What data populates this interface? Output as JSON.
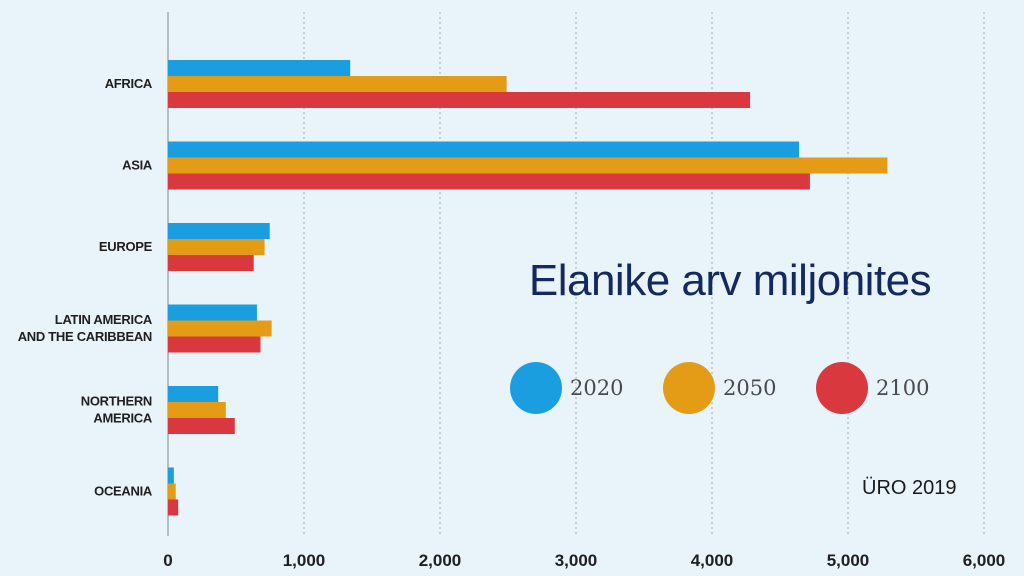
{
  "chart_data": {
    "type": "bar",
    "orientation": "horizontal",
    "title": "Elanike arv miljonites",
    "categories": [
      [
        "AFRICA"
      ],
      [
        "ASIA"
      ],
      [
        "EUROPE"
      ],
      [
        "LATIN AMERICA",
        "AND THE CARIBBEAN"
      ],
      [
        "NORTHERN",
        "AMERICA"
      ],
      [
        "OCEANIA"
      ]
    ],
    "series": [
      {
        "name": "2020",
        "color": "#1a9ee0",
        "values": [
          1340,
          4640,
          748,
          654,
          369,
          43
        ]
      },
      {
        "name": "2050",
        "color": "#e49c17",
        "values": [
          2490,
          5290,
          710,
          762,
          425,
          57
        ]
      },
      {
        "name": "2100",
        "color": "#d8383e",
        "values": [
          4280,
          4720,
          630,
          680,
          491,
          75
        ]
      }
    ],
    "x_ticks": [
      "0",
      "1,000",
      "2,000",
      "3,000",
      "4,000",
      "5,000",
      "6,000"
    ],
    "xlim": [
      0,
      6000
    ],
    "grid": "vertical dotted",
    "legend_placement": "right-middle",
    "source": "ÜRO 2019"
  }
}
